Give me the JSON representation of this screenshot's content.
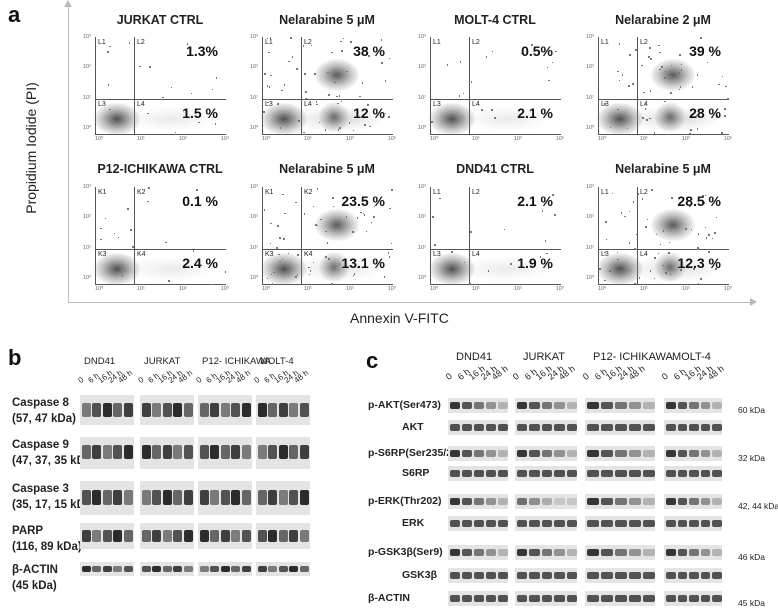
{
  "panel_a": {
    "letter": "a",
    "y_axis_label": "Propidium Iodide (PI)",
    "x_axis_label": "Annexin V-FITC",
    "plots": [
      {
        "title": "JURKAT CTRL",
        "q": [
          "L1",
          "L2",
          "L3",
          "L4"
        ],
        "ur": "1.3%",
        "lr": "1.5 %",
        "apopt": 0.02,
        "necro": 0.01
      },
      {
        "title": "Nelarabine 5 μM",
        "q": [
          "L1",
          "L2",
          "L3",
          "L4"
        ],
        "ur": "38 %",
        "lr": "12 %",
        "apopt": 0.6,
        "necro": 0.6
      },
      {
        "title": "MOLT-4 CTRL",
        "q": [
          "L1",
          "L2",
          "L3",
          "L4"
        ],
        "ur": "0.5%",
        "lr": "2.1 %",
        "apopt": 0.02,
        "necro": 0.01
      },
      {
        "title": "Nelarabine 2 μM",
        "q": [
          "L1",
          "L2",
          "L3",
          "L4"
        ],
        "ur": "39 %",
        "lr": "28 %",
        "apopt": 0.6,
        "necro": 0.6
      },
      {
        "title": "P12-ICHIKAWA CTRL",
        "q": [
          "K1",
          "K2",
          "K3",
          "K4"
        ],
        "ur": "0.1 %",
        "lr": "2.4 %",
        "apopt": 0.02,
        "necro": 0.01
      },
      {
        "title": "Nelarabine 5 μM",
        "q": [
          "K1",
          "K2",
          "K3",
          "K4"
        ],
        "ur": "23.5 %",
        "lr": "13.1 %",
        "apopt": 0.4,
        "necro": 0.5
      },
      {
        "title": "DND41 CTRL",
        "q": [
          "L1",
          "L2",
          "L3",
          "L4"
        ],
        "ur": "2.1 %",
        "lr": "1.9 %",
        "apopt": 0.02,
        "necro": 0.01
      },
      {
        "title": "Nelarabine 5 μM",
        "q": [
          "L1",
          "L2",
          "L3",
          "L4"
        ],
        "ur": "28.5 %",
        "lr": "12.3 %",
        "apopt": 0.5,
        "necro": 0.5
      }
    ],
    "ticks_y": [
      "10³",
      "10²",
      "10¹",
      "10⁰"
    ],
    "ticks_x": [
      "10⁰",
      "10¹",
      "10²",
      "10³"
    ]
  },
  "panel_b": {
    "letter": "b",
    "cell_lines": [
      "DND41",
      "JURKAT",
      "P12- ICHIKAWA",
      "MOLT-4"
    ],
    "timepoints": [
      "0",
      "6 h",
      "16 h",
      "24 h",
      "48 h"
    ],
    "rows": [
      {
        "label1": "Caspase 8",
        "label2": "(57, 47 kDa)"
      },
      {
        "label1": "Caspase 9",
        "label2": "(47, 37, 35 kDa)"
      },
      {
        "label1": "Caspase 3",
        "label2": "(35, 17, 15 kDa)"
      },
      {
        "label1": "PARP",
        "label2": "(116, 89 kDa)"
      },
      {
        "label1": "β-ACTIN",
        "label2": "(45 kDa)"
      }
    ]
  },
  "panel_c": {
    "letter": "c",
    "cell_lines": [
      "DND41",
      "JURKAT",
      "P12- ICHIKAWA",
      "MOLT-4"
    ],
    "timepoints": [
      "0",
      "6 h",
      "16 h",
      "24 h",
      "48 h"
    ],
    "rows": [
      {
        "label": "p-AKT(Ser473)",
        "kda": "60 kDa"
      },
      {
        "label": "AKT",
        "kda": ""
      },
      {
        "label": "p-S6RP(Ser235/236)",
        "kda": "32 kDa"
      },
      {
        "label": "S6RP",
        "kda": ""
      },
      {
        "label": "p-ERK(Thr202)",
        "kda": "42, 44 kDa"
      },
      {
        "label": "ERK",
        "kda": ""
      },
      {
        "label": "p-GSK3β(Ser9)",
        "kda": "46 kDa"
      },
      {
        "label": "GSK3β",
        "kda": ""
      },
      {
        "label": "β-ACTIN",
        "kda": "45 kDa"
      }
    ]
  }
}
